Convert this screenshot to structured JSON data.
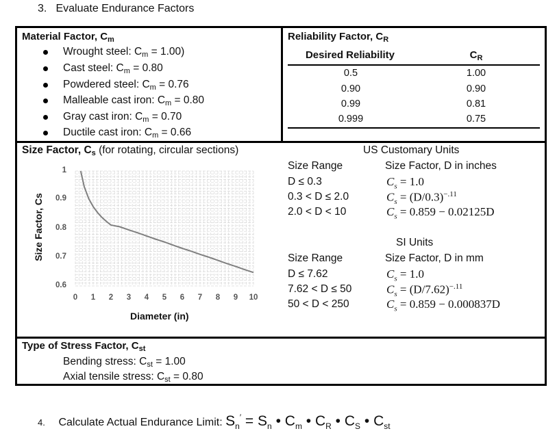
{
  "step3": {
    "number": "3.",
    "title": "Evaluate Endurance Factors"
  },
  "material": {
    "title_main": "Material Factor, C",
    "title_sub": "m",
    "items": [
      {
        "pre": "Wrought steel: C",
        "sub": "m",
        "post": " = 1.00)"
      },
      {
        "pre": "Cast steel: C",
        "sub": "m",
        "post": " = 0.80"
      },
      {
        "pre": "Powdered steel: C",
        "sub": "m",
        "post": " = 0.76"
      },
      {
        "pre": "Malleable cast iron: C",
        "sub": "m",
        "post": " = 0.80"
      },
      {
        "pre": "Gray cast iron: C",
        "sub": "m",
        "post": " = 0.70"
      },
      {
        "pre": "Ductile cast iron: C",
        "sub": "m",
        "post": " = 0.66"
      }
    ]
  },
  "reliability": {
    "title_main": "Reliability Factor, C",
    "title_sub": "R",
    "col1_header": "Desired Reliability",
    "col2_header_main": "C",
    "col2_header_sub": "R",
    "rows": [
      {
        "reliability": "0.5",
        "cr": "1.00"
      },
      {
        "reliability": "0.90",
        "cr": "0.90"
      },
      {
        "reliability": "0.99",
        "cr": "0.81"
      },
      {
        "reliability": "0.999",
        "cr": "0.75"
      }
    ]
  },
  "size": {
    "title_main": "Size Factor, C",
    "title_sub": "s",
    "title_rest": " (for rotating, circular sections)",
    "us_title": "US Customary Units",
    "us_range_header": "Size Range",
    "us_factor_header": "Size Factor, D in inches",
    "us_ranges": [
      "D ≤ 0.3",
      "0.3 < D ≤ 2.0",
      "2.0 < D < 10"
    ],
    "us_formulas": [
      {
        "lhs": "C",
        "sub": "s",
        "rhs": " = 1.0",
        "sup": ""
      },
      {
        "lhs": "C",
        "sub": "s",
        "rhs": " = (D/0.3)",
        "sup": "−.11"
      },
      {
        "lhs": "C",
        "sub": "s",
        "rhs": " = 0.859 − 0.02125D",
        "sup": ""
      }
    ],
    "si_title": "SI Units",
    "si_range_header": "Size Range",
    "si_factor_header": "Size Factor, D in mm",
    "si_ranges": [
      "D ≤ 7.62",
      "7.62 < D ≤ 50",
      "50 < D < 250"
    ],
    "si_formulas": [
      {
        "lhs": "C",
        "sub": "s",
        "rhs": " = 1.0",
        "sup": ""
      },
      {
        "lhs": "C",
        "sub": "s",
        "rhs": " = (D/7.62)",
        "sup": "−.11"
      },
      {
        "lhs": "C",
        "sub": "s",
        "rhs": " = 0.859 − 0.000837D",
        "sup": ""
      }
    ]
  },
  "chart_data": {
    "type": "line",
    "title": "",
    "xlabel": "Diameter (in)",
    "ylabel": "Size Factor, Cs",
    "xlim": [
      0,
      10
    ],
    "ylim": [
      0.6,
      1.0
    ],
    "x_ticks": [
      "0",
      "1",
      "2",
      "3",
      "4",
      "5",
      "6",
      "7",
      "8",
      "9",
      "10"
    ],
    "y_ticks": [
      "1",
      "0.9",
      "0.8",
      "0.7",
      "0.6"
    ],
    "grid": true,
    "series": [
      {
        "color": "#7f7f7f",
        "points": [
          [
            0.3,
            1.0
          ],
          [
            0.5,
            0.945
          ],
          [
            0.75,
            0.904
          ],
          [
            1.0,
            0.876
          ],
          [
            1.25,
            0.855
          ],
          [
            1.5,
            0.838
          ],
          [
            1.75,
            0.824
          ],
          [
            2.0,
            0.812
          ],
          [
            2.5,
            0.806
          ],
          [
            3.0,
            0.795
          ],
          [
            3.5,
            0.785
          ],
          [
            4.0,
            0.774
          ],
          [
            4.5,
            0.763
          ],
          [
            5.0,
            0.753
          ],
          [
            5.5,
            0.742
          ],
          [
            6.0,
            0.731
          ],
          [
            6.5,
            0.721
          ],
          [
            7.0,
            0.71
          ],
          [
            7.5,
            0.7
          ],
          [
            8.0,
            0.689
          ],
          [
            8.5,
            0.678
          ],
          [
            9.0,
            0.668
          ],
          [
            9.5,
            0.657
          ],
          [
            10.0,
            0.647
          ]
        ]
      }
    ]
  },
  "stress": {
    "title_main": "Type of Stress Factor, C",
    "title_sub": "st",
    "items": [
      {
        "pre": "Bending stress: C",
        "sub": "st",
        "post": " = 1.00"
      },
      {
        "pre": "Axial tensile stress: C",
        "sub": "st",
        "post": " = 0.80"
      }
    ]
  },
  "step4": {
    "number": "4.",
    "label": "Calculate Actual Endurance Limit: ",
    "equation": {
      "lhs": "S",
      "lhs_sub": "n",
      "lhs_sup": "′",
      "eq": " = ",
      "terms": [
        {
          "base": "S",
          "sub": "n"
        },
        {
          "base": "C",
          "sub": "m"
        },
        {
          "base": "C",
          "sub": "R"
        },
        {
          "base": "C",
          "sub": "S"
        },
        {
          "base": "C",
          "sub": "st"
        }
      ],
      "dot": " • "
    }
  }
}
